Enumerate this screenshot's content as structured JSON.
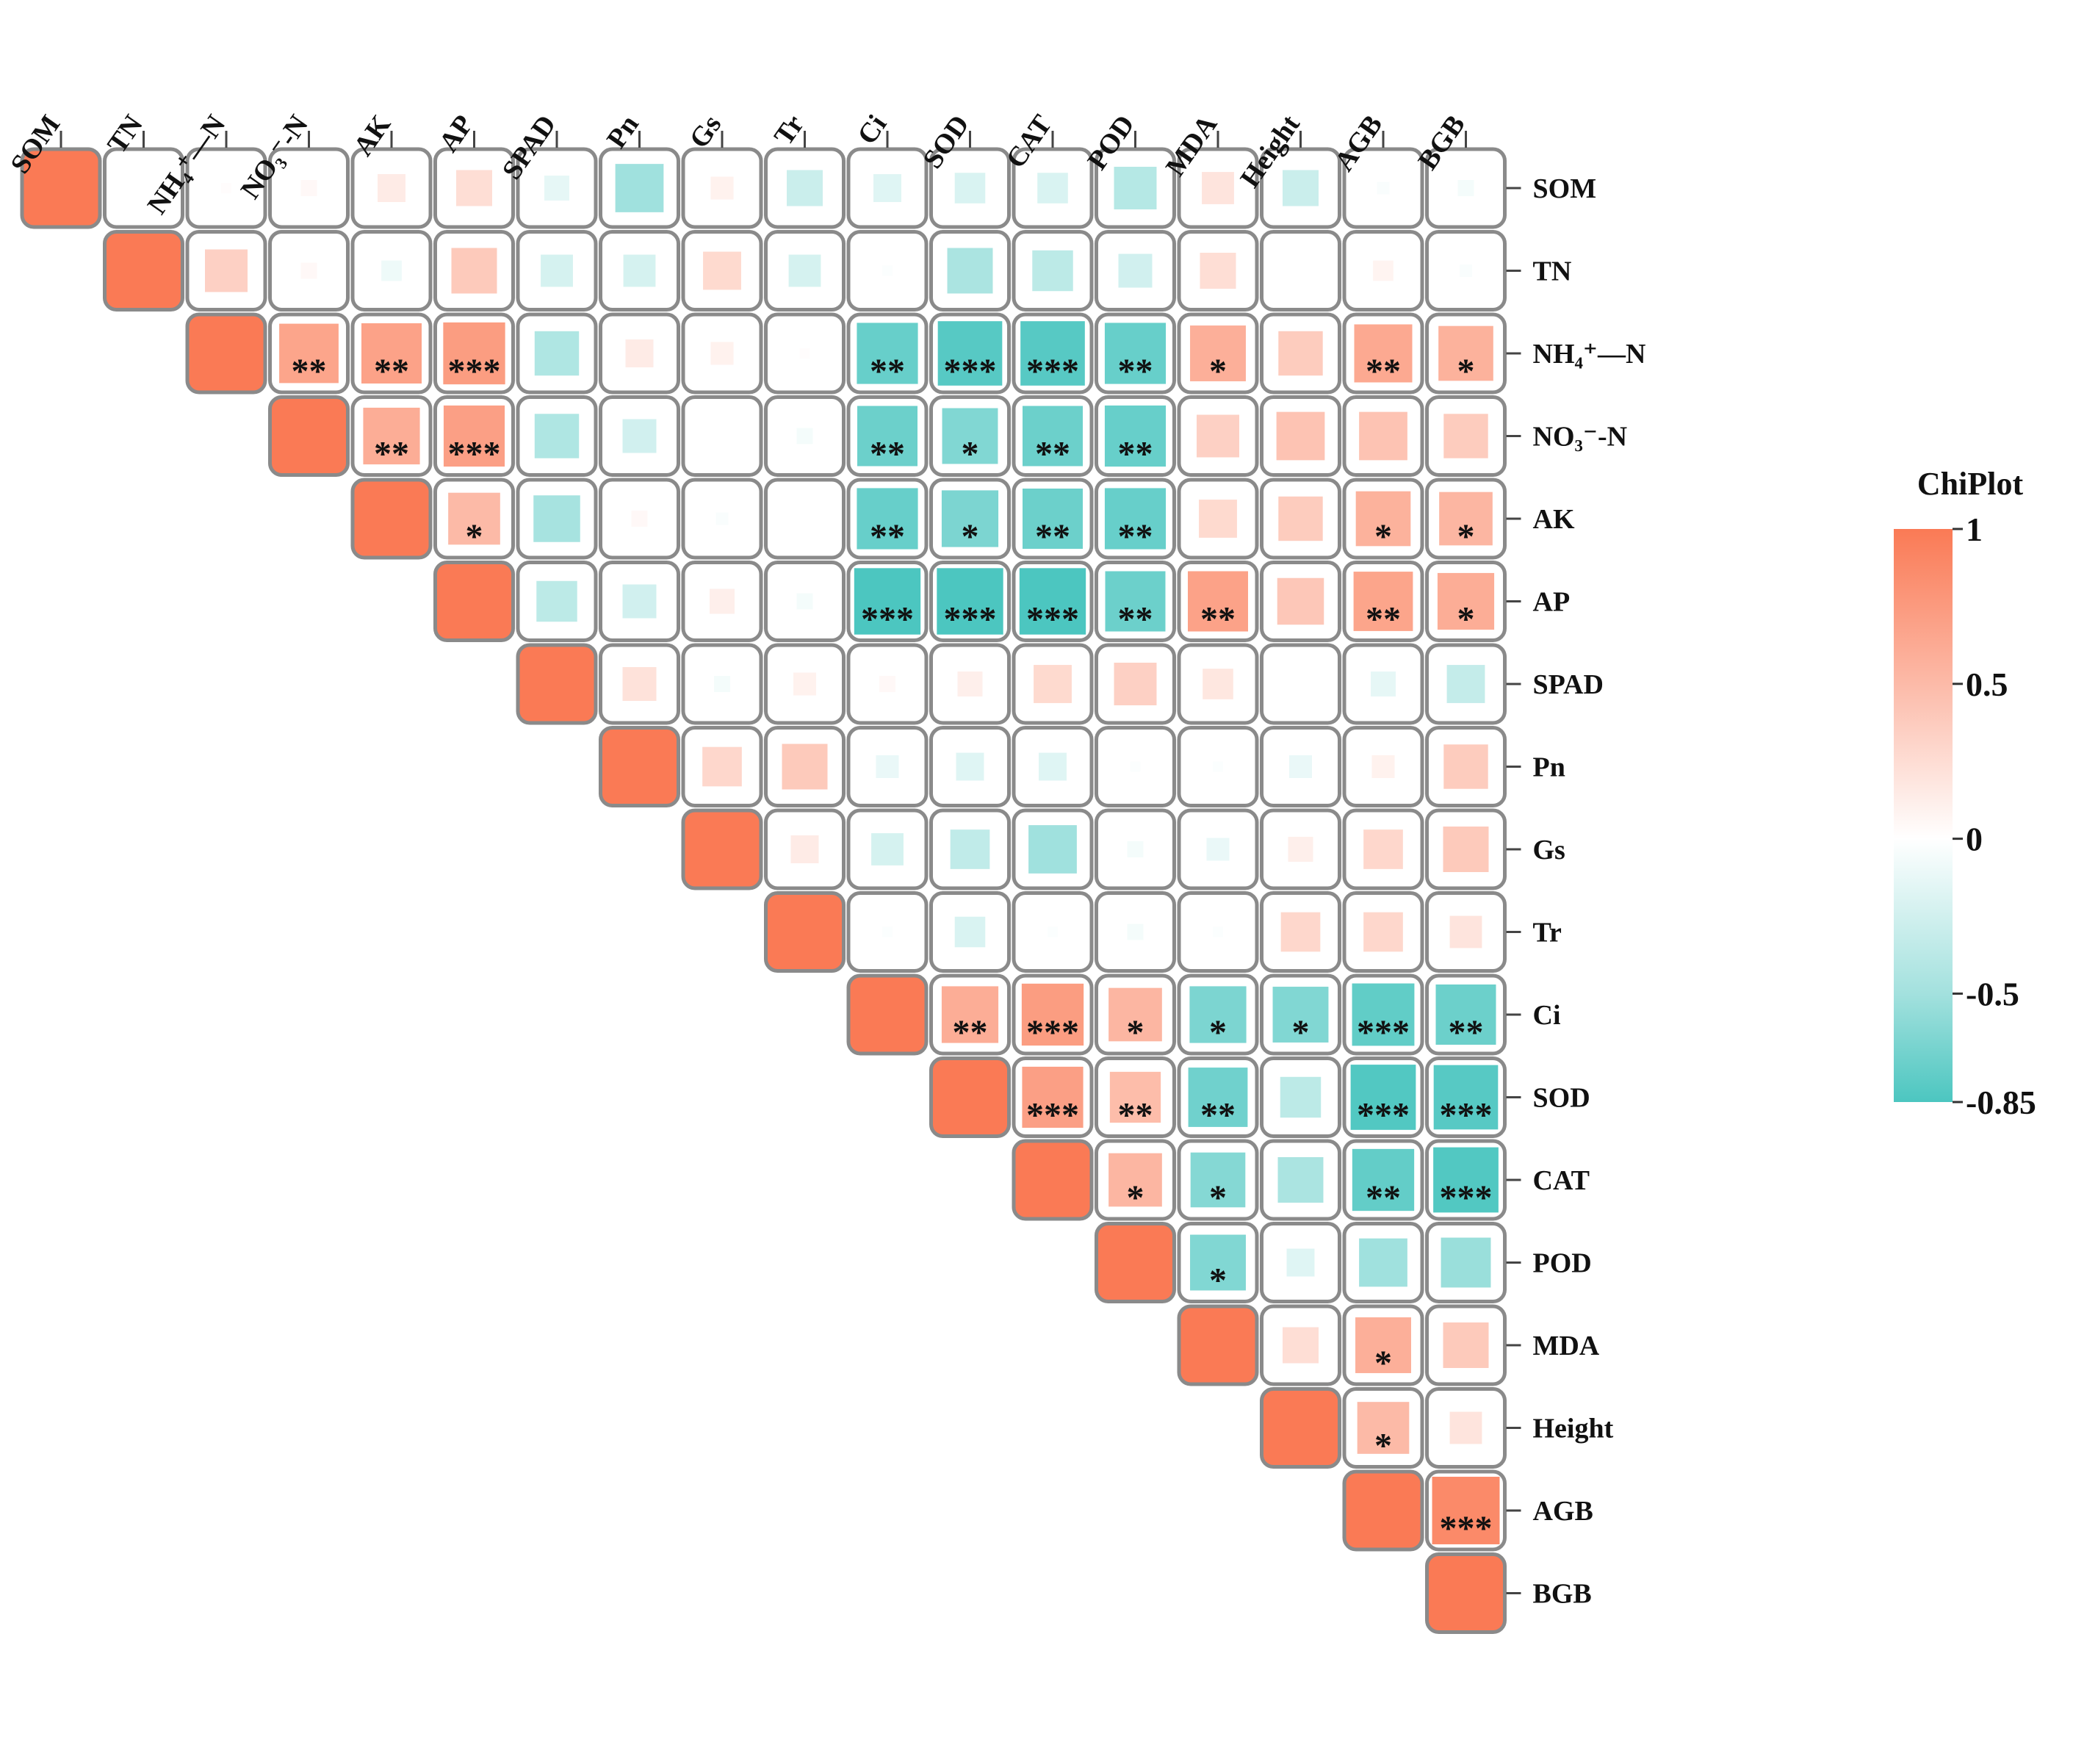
{
  "chart_data": {
    "type": "heatmap",
    "title": "",
    "layout": "upper-triangle correlation matrix",
    "variables": [
      "SOM",
      "TN",
      "NH₄⁺—N",
      "NO₃⁻-N",
      "AK",
      "AP",
      "SPAD",
      "Pn",
      "Gs",
      "Tr",
      "Ci",
      "SOD",
      "CAT",
      "POD",
      "MDA",
      "Height",
      "AGB",
      "BGB"
    ],
    "matrix": [
      [
        1,
        0,
        0.02,
        0.05,
        0.15,
        0.25,
        -0.12,
        -0.45,
        0.1,
        -0.25,
        -0.15,
        -0.18,
        -0.18,
        -0.35,
        0.2,
        -0.25,
        -0.03,
        -0.05
      ],
      [
        null,
        1,
        0.35,
        0.05,
        -0.08,
        0.4,
        -0.2,
        -0.2,
        0.28,
        -0.2,
        -0.02,
        -0.4,
        -0.32,
        -0.22,
        0.25,
        0,
        0.08,
        -0.03
      ],
      [
        null,
        null,
        1,
        0.68,
        0.7,
        0.74,
        -0.38,
        0.15,
        0.1,
        0.02,
        -0.72,
        -0.8,
        -0.8,
        -0.72,
        0.6,
        0.38,
        0.65,
        0.58
      ],
      [
        null,
        null,
        null,
        1,
        0.62,
        0.72,
        -0.38,
        -0.22,
        0,
        -0.05,
        -0.7,
        -0.6,
        -0.7,
        -0.72,
        0.35,
        0.45,
        0.45,
        0.38
      ],
      [
        null,
        null,
        null,
        null,
        1,
        0.52,
        -0.42,
        0.05,
        -0.03,
        0,
        -0.72,
        -0.62,
        -0.7,
        -0.72,
        0.28,
        0.38,
        0.58,
        0.55
      ],
      [
        null,
        null,
        null,
        null,
        null,
        1,
        -0.32,
        -0.22,
        0.12,
        -0.05,
        -0.85,
        -0.85,
        -0.85,
        -0.7,
        0.7,
        0.42,
        0.68,
        0.62
      ],
      [
        null,
        null,
        null,
        null,
        null,
        null,
        1,
        0.22,
        -0.05,
        0.1,
        0.05,
        0.12,
        0.28,
        0.35,
        0.18,
        0,
        -0.12,
        -0.28
      ],
      [
        null,
        null,
        null,
        null,
        null,
        null,
        null,
        1,
        0.3,
        0.4,
        -0.1,
        -0.15,
        -0.15,
        -0.02,
        -0.02,
        -0.1,
        0.1,
        0.38
      ],
      [
        null,
        null,
        null,
        null,
        null,
        null,
        null,
        null,
        1,
        0.15,
        -0.2,
        -0.3,
        -0.45,
        -0.05,
        -0.1,
        0.12,
        0.3,
        0.4
      ],
      [
        null,
        null,
        null,
        null,
        null,
        null,
        null,
        null,
        null,
        1,
        -0.02,
        -0.18,
        -0.02,
        -0.05,
        -0.02,
        0.3,
        0.3,
        0.2
      ],
      [
        null,
        null,
        null,
        null,
        null,
        null,
        null,
        null,
        null,
        null,
        1,
        0.62,
        0.74,
        0.55,
        -0.62,
        -0.6,
        -0.75,
        -0.7
      ],
      [
        null,
        null,
        null,
        null,
        null,
        null,
        null,
        null,
        null,
        null,
        null,
        1,
        0.72,
        0.5,
        -0.68,
        -0.32,
        -0.82,
        -0.8
      ],
      [
        null,
        null,
        null,
        null,
        null,
        null,
        null,
        null,
        null,
        null,
        null,
        null,
        1,
        0.55,
        -0.58,
        -0.4,
        -0.74,
        -0.82
      ],
      [
        null,
        null,
        null,
        null,
        null,
        null,
        null,
        null,
        null,
        null,
        null,
        null,
        null,
        1,
        -0.6,
        -0.15,
        -0.45,
        -0.48
      ],
      [
        null,
        null,
        null,
        null,
        null,
        null,
        null,
        null,
        null,
        null,
        null,
        null,
        null,
        null,
        1,
        0.25,
        0.6,
        0.4
      ],
      [
        null,
        null,
        null,
        null,
        null,
        null,
        null,
        null,
        null,
        null,
        null,
        null,
        null,
        null,
        null,
        1,
        0.52,
        0.2
      ],
      [
        null,
        null,
        null,
        null,
        null,
        null,
        null,
        null,
        null,
        null,
        null,
        null,
        null,
        null,
        null,
        null,
        1,
        0.88
      ],
      [
        null,
        null,
        null,
        null,
        null,
        null,
        null,
        null,
        null,
        null,
        null,
        null,
        null,
        null,
        null,
        null,
        null,
        1
      ]
    ],
    "significance": [
      [
        "",
        "",
        "",
        "",
        "",
        "",
        "",
        "",
        "",
        "",
        "",
        "",
        "",
        "",
        "",
        "",
        "",
        ""
      ],
      [
        "",
        "",
        "",
        "",
        "",
        "",
        "",
        "",
        "",
        "",
        "",
        "",
        "",
        "",
        "",
        "",
        "",
        ""
      ],
      [
        "",
        "",
        "",
        "**",
        "**",
        "***",
        "",
        "",
        "",
        "",
        "**",
        "***",
        "***",
        "**",
        "*",
        "",
        "**",
        "*"
      ],
      [
        "",
        "",
        "",
        "",
        "**",
        "***",
        "",
        "",
        "",
        "",
        "**",
        "*",
        "**",
        "**",
        "",
        "",
        "",
        ""
      ],
      [
        "",
        "",
        "",
        "",
        "",
        "*",
        "",
        "",
        "",
        "",
        "**",
        "*",
        "**",
        "**",
        "",
        "",
        "*",
        "*"
      ],
      [
        "",
        "",
        "",
        "",
        "",
        "",
        "",
        "",
        "",
        "",
        "***",
        "***",
        "***",
        "**",
        "**",
        "",
        "**",
        "*"
      ],
      [
        "",
        "",
        "",
        "",
        "",
        "",
        "",
        "",
        "",
        "",
        "",
        "",
        "",
        "",
        "",
        "",
        "",
        ""
      ],
      [
        "",
        "",
        "",
        "",
        "",
        "",
        "",
        "",
        "",
        "",
        "",
        "",
        "",
        "",
        "",
        "",
        "",
        ""
      ],
      [
        "",
        "",
        "",
        "",
        "",
        "",
        "",
        "",
        "",
        "",
        "",
        "",
        "",
        "",
        "",
        "",
        "",
        ""
      ],
      [
        "",
        "",
        "",
        "",
        "",
        "",
        "",
        "",
        "",
        "",
        "",
        "",
        "",
        "",
        "",
        "",
        "",
        ""
      ],
      [
        "",
        "",
        "",
        "",
        "",
        "",
        "",
        "",
        "",
        "",
        "",
        "**",
        "***",
        "*",
        "*",
        "*",
        "***",
        "**"
      ],
      [
        "",
        "",
        "",
        "",
        "",
        "",
        "",
        "",
        "",
        "",
        "",
        "",
        "***",
        "**",
        "**",
        "",
        "***",
        "***"
      ],
      [
        "",
        "",
        "",
        "",
        "",
        "",
        "",
        "",
        "",
        "",
        "",
        "",
        "",
        "*",
        "*",
        "",
        "**",
        "***"
      ],
      [
        "",
        "",
        "",
        "",
        "",
        "",
        "",
        "",
        "",
        "",
        "",
        "",
        "",
        "",
        "*",
        "",
        "",
        ""
      ],
      [
        "",
        "",
        "",
        "",
        "",
        "",
        "",
        "",
        "",
        "",
        "",
        "",
        "",
        "",
        "",
        "",
        "*",
        ""
      ],
      [
        "",
        "",
        "",
        "",
        "",
        "",
        "",
        "",
        "",
        "",
        "",
        "",
        "",
        "",
        "",
        "",
        "*",
        ""
      ],
      [
        "",
        "",
        "",
        "",
        "",
        "",
        "",
        "",
        "",
        "",
        "",
        "",
        "",
        "",
        "",
        "",
        "",
        "***"
      ],
      [
        "",
        "",
        "",
        "",
        "",
        "",
        "",
        "",
        "",
        "",
        "",
        "",
        "",
        "",
        "",
        "",
        "",
        ""
      ]
    ],
    "legend": {
      "title": "ChiPlot",
      "range": [
        -0.85,
        1
      ],
      "ticks": [
        1,
        0.5,
        0,
        -0.5,
        -0.85
      ],
      "tick_labels": [
        "1",
        "0.5",
        "0",
        "-0.5",
        "-0.85"
      ],
      "position": "right",
      "colors": {
        "positive": "#fa7a55",
        "zero": "#ffffff",
        "negative": "#4cc6c0"
      }
    }
  }
}
